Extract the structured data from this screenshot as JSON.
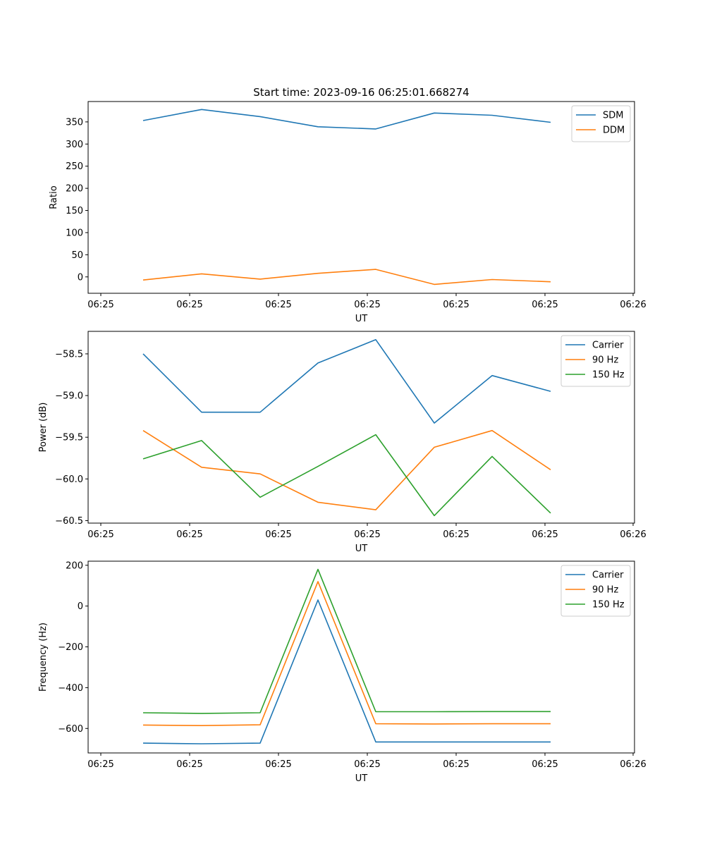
{
  "chart_data": [
    {
      "type": "line",
      "title": "Start time: 2023-09-16 06:25:01.668274",
      "xlabel": "UT",
      "ylabel": "Ratio",
      "x_ticks": [
        "06:25",
        "06:25",
        "06:25",
        "06:25",
        "06:25",
        "06:25",
        "06:25"
      ],
      "x_end_tick": "06:26",
      "y_ticks": [
        0,
        50,
        100,
        150,
        200,
        250,
        300,
        350
      ],
      "ylim": [
        -37,
        396
      ],
      "legend": "top-right",
      "series": [
        {
          "name": "SDM",
          "color": "#1f77b4",
          "values": [
            353,
            378,
            362,
            339,
            334,
            370,
            365,
            349
          ]
        },
        {
          "name": "DDM",
          "color": "#ff7f0e",
          "values": [
            -7,
            7,
            -5,
            8,
            17,
            -17,
            -6,
            -11
          ]
        }
      ]
    },
    {
      "type": "line",
      "title": "",
      "xlabel": "UT",
      "ylabel": "Power (dB)",
      "x_ticks": [
        "06:25",
        "06:25",
        "06:25",
        "06:25",
        "06:25",
        "06:25",
        "06:25"
      ],
      "x_end_tick": "06:26",
      "y_ticks": [
        -58.5,
        -59.0,
        -59.5,
        -60.0,
        -60.5
      ],
      "ylim": [
        -60.53,
        -58.23
      ],
      "legend": "top-right",
      "series": [
        {
          "name": "Carrier",
          "color": "#1f77b4",
          "values": [
            -58.5,
            -59.2,
            -59.2,
            -58.61,
            -58.33,
            -59.33,
            -58.76,
            -58.95
          ]
        },
        {
          "name": "90 Hz",
          "color": "#ff7f0e",
          "values": [
            -59.42,
            -59.86,
            -59.94,
            -60.28,
            -60.37,
            -59.62,
            -59.42,
            -59.89
          ]
        },
        {
          "name": "150 Hz",
          "color": "#2ca02c",
          "values": [
            -59.76,
            -59.54,
            -60.22,
            -59.85,
            -59.47,
            -60.44,
            -59.73,
            -60.41
          ]
        }
      ]
    },
    {
      "type": "line",
      "title": "",
      "xlabel": "UT",
      "ylabel": "Frequency (Hz)",
      "x_ticks": [
        "06:25",
        "06:25",
        "06:25",
        "06:25",
        "06:25",
        "06:25",
        "06:25"
      ],
      "x_end_tick": "06:26",
      "y_ticks": [
        200,
        0,
        -200,
        -400,
        -600
      ],
      "ylim": [
        -720,
        220
      ],
      "legend": "top-right",
      "series": [
        {
          "name": "Carrier",
          "color": "#1f77b4",
          "values": [
            -672,
            -675,
            -672,
            30,
            -666,
            -666,
            -666,
            -666
          ]
        },
        {
          "name": "90 Hz",
          "color": "#ff7f0e",
          "values": [
            -583,
            -586,
            -582,
            120,
            -577,
            -578,
            -577,
            -577
          ]
        },
        {
          "name": "150 Hz",
          "color": "#2ca02c",
          "values": [
            -523,
            -526,
            -523,
            180,
            -518,
            -518,
            -517,
            -517
          ]
        }
      ]
    }
  ]
}
